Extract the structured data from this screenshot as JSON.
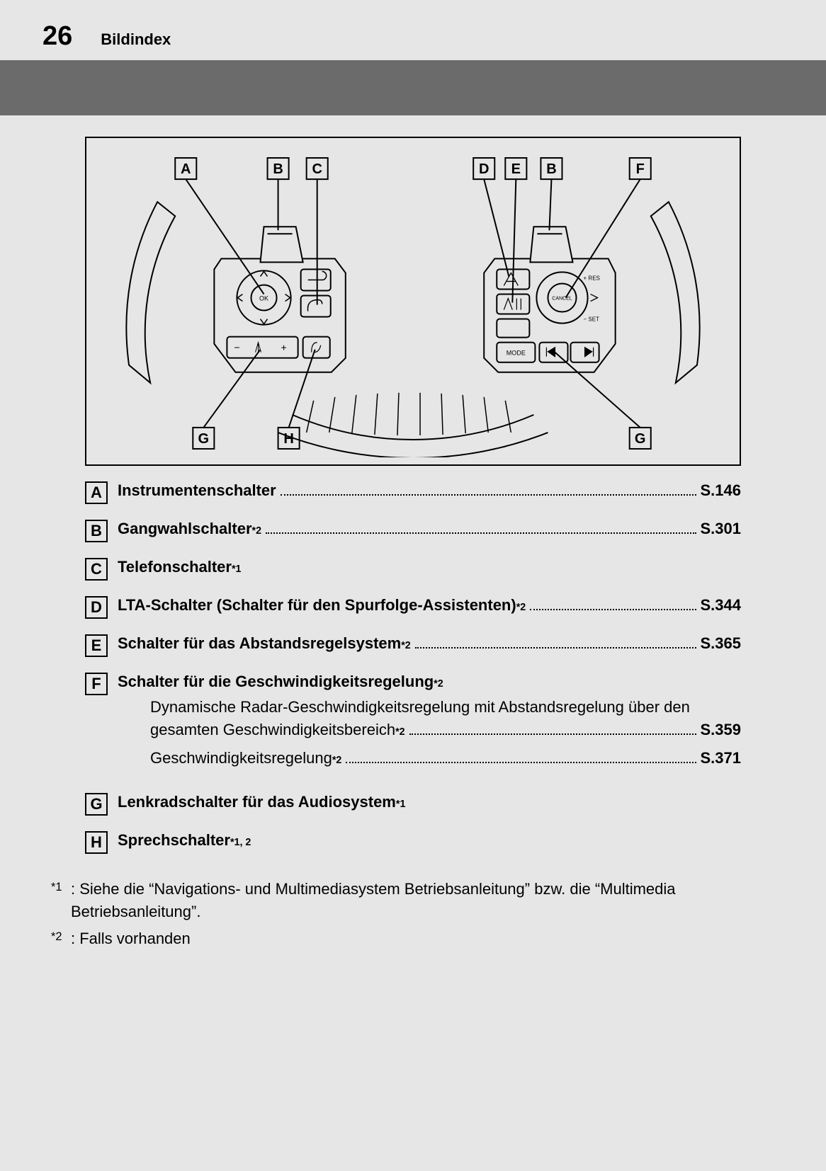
{
  "header": {
    "page_number": "26",
    "section": "Bildindex"
  },
  "diagram": {
    "callouts_top": [
      "A",
      "B",
      "C",
      "D",
      "E",
      "B",
      "F"
    ],
    "callouts_bottom": [
      "G",
      "H",
      "G"
    ],
    "left_knob_labels": [
      "OK"
    ],
    "right_knob_labels": [
      "+ RES",
      "CANCEL",
      "− SET",
      "MODE"
    ],
    "left_lower_labels": [
      "−",
      "+"
    ],
    "stroke_color": "#000000",
    "fill_color": "#e6e6e6",
    "callout_box_size": 30
  },
  "items": [
    {
      "letter": "A",
      "label": "Instrumentenschalter",
      "sup": "",
      "page": "S.146"
    },
    {
      "letter": "B",
      "label": "Gangwahlschalter",
      "sup": "*2",
      "page": "S.301"
    },
    {
      "letter": "C",
      "label": "Telefonschalter",
      "sup": "*1",
      "page": ""
    },
    {
      "letter": "D",
      "label": "LTA-Schalter (Schalter für den Spurfolge-Assistenten)",
      "sup": "*2",
      "page": "S.344"
    },
    {
      "letter": "E",
      "label": "Schalter für das Abstandsregelsystem",
      "sup": "*2",
      "page": "S.365"
    },
    {
      "letter": "F",
      "label": "Schalter für die Geschwindigkeitsregelung",
      "sup": "*2",
      "page": "",
      "subitems": [
        {
          "text_wrap": "Dynamische Radar-Geschwindigkeitsregelung mit Abstandsregelung über den",
          "text_tail": "gesamten Geschwindigkeitsbereich",
          "sup": "*2",
          "page": "S.359"
        },
        {
          "text_wrap": "",
          "text_tail": "Geschwindigkeitsregelung",
          "sup": "*2",
          "page": "S.371"
        }
      ]
    },
    {
      "letter": "G",
      "label": "Lenkradschalter für das Audiosystem",
      "sup": "*1",
      "page": ""
    },
    {
      "letter": "H",
      "label": "Sprechschalter",
      "sup": "*1, 2",
      "page": ""
    }
  ],
  "footnotes": [
    {
      "mark": "*1",
      "text": ": Siehe die “Navigations- und Multimediasystem Betriebsanleitung” bzw. die “Multimedia Betriebsanleitung”."
    },
    {
      "mark": "*2",
      "text": ": Falls vorhanden"
    }
  ]
}
